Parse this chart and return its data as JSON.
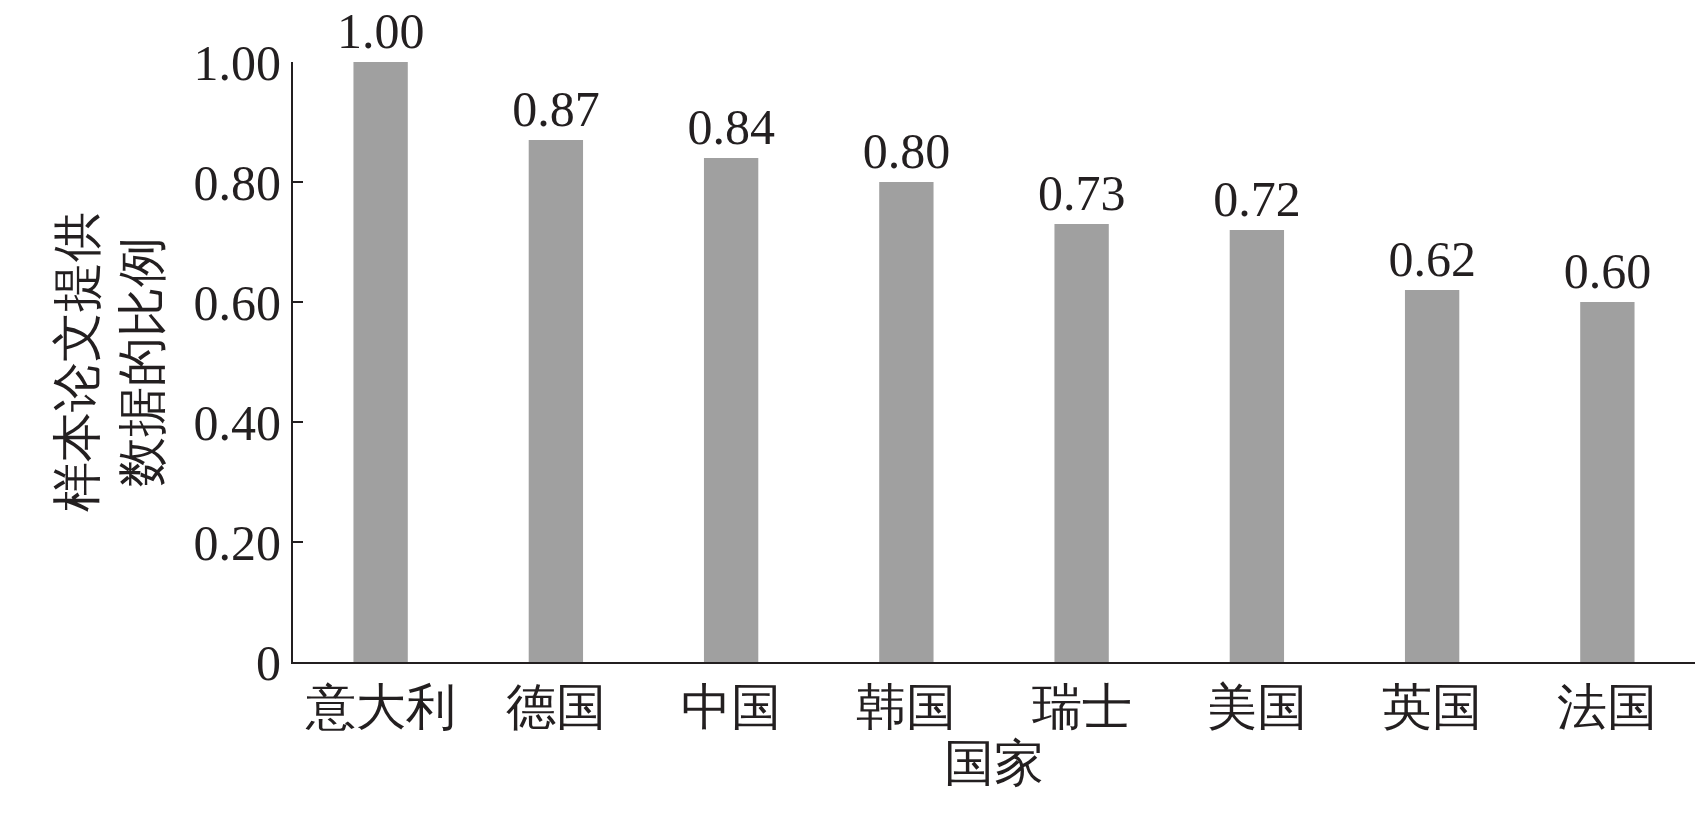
{
  "chart_data": {
    "type": "bar",
    "xlabel": "国家",
    "ylabel": "样本论文提供数据的比例",
    "categories": [
      "意大利",
      "德国",
      "中国",
      "韩国",
      "瑞士",
      "美国",
      "英国",
      "法国"
    ],
    "values": [
      1.0,
      0.87,
      0.84,
      0.8,
      0.73,
      0.72,
      0.62,
      0.6
    ],
    "value_labels": [
      "1.00",
      "0.87",
      "0.84",
      "0.80",
      "0.73",
      "0.72",
      "0.62",
      "0.60"
    ],
    "color": "#a0a0a0",
    "grid": false,
    "legend": false,
    "ylim": [
      0,
      1
    ],
    "yticks": [
      {
        "value": 0,
        "label": "0"
      },
      {
        "value": 0.2,
        "label": "0.20"
      },
      {
        "value": 0.4,
        "label": "0.40"
      },
      {
        "value": 0.6,
        "label": "0.60"
      },
      {
        "value": 0.8,
        "label": "0.80"
      },
      {
        "value": 1,
        "label": "1.00"
      }
    ]
  }
}
